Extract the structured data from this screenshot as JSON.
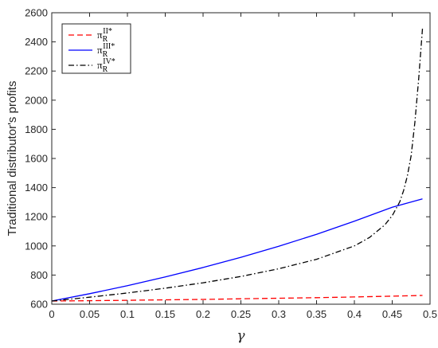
{
  "chart_data": {
    "type": "line",
    "xlabel": "γ",
    "ylabel": "Traditional distributor's profits",
    "xlim": [
      0,
      0.5
    ],
    "ylim": [
      600,
      2600
    ],
    "xticks": [
      0,
      0.05,
      0.1,
      0.15,
      0.2,
      0.25,
      0.3,
      0.35,
      0.4,
      0.45,
      0.5
    ],
    "yticks": [
      600,
      800,
      1000,
      1200,
      1400,
      1600,
      1800,
      2000,
      2200,
      2400,
      2600
    ],
    "grid": false,
    "legend_position": "top-left",
    "series": [
      {
        "name": "π_R^{II*}",
        "legend": {
          "base": "π",
          "sub": "R",
          "sup": "II*"
        },
        "color": "#ff0000",
        "dash": "dashed",
        "x": [
          0,
          0.05,
          0.1,
          0.15,
          0.2,
          0.25,
          0.3,
          0.35,
          0.4,
          0.45,
          0.49
        ],
        "y": [
          622,
          624,
          627,
          630,
          633,
          637,
          641,
          645,
          650,
          655,
          660
        ]
      },
      {
        "name": "π_R^{III*}",
        "legend": {
          "base": "π",
          "sub": "R",
          "sup": "III*"
        },
        "color": "#0000ff",
        "dash": "solid",
        "x": [
          0,
          0.05,
          0.1,
          0.15,
          0.2,
          0.25,
          0.3,
          0.35,
          0.4,
          0.45,
          0.49
        ],
        "y": [
          622,
          672,
          727,
          787,
          852,
          922,
          997,
          1080,
          1170,
          1265,
          1323
        ]
      },
      {
        "name": "π_R^{IV*}",
        "legend": {
          "base": "π",
          "sub": "R",
          "sup": "IV*"
        },
        "color": "#000000",
        "dash": "dashdot",
        "x": [
          0,
          0.05,
          0.1,
          0.15,
          0.2,
          0.25,
          0.3,
          0.35,
          0.4,
          0.42,
          0.44,
          0.45,
          0.46,
          0.465,
          0.47,
          0.475,
          0.48,
          0.485,
          0.49
        ],
        "y": [
          622,
          648,
          677,
          710,
          747,
          790,
          843,
          908,
          1000,
          1058,
          1143,
          1207,
          1303,
          1380,
          1480,
          1620,
          1850,
          2150,
          2490
        ]
      }
    ]
  }
}
